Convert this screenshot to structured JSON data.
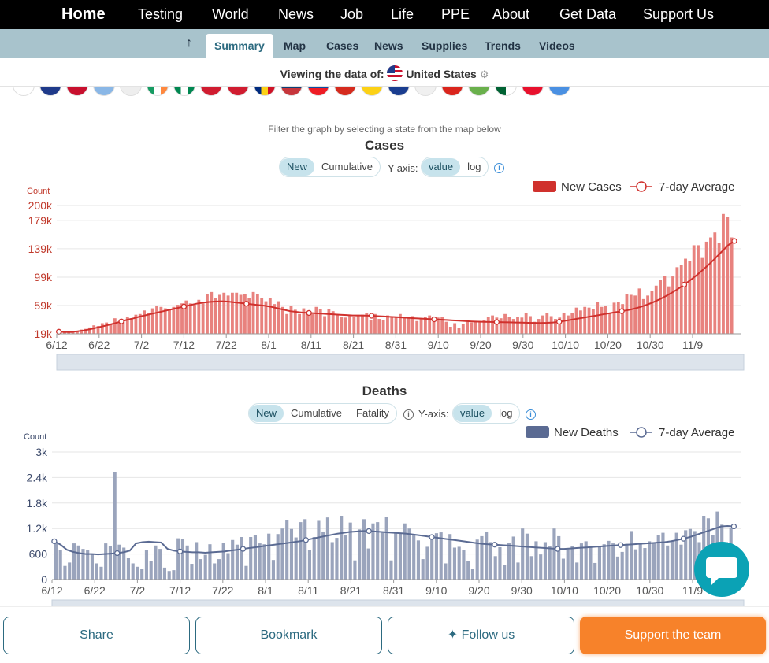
{
  "topnav": {
    "items": [
      "Home",
      "Testing",
      "World",
      "News",
      "Job",
      "Life",
      "PPE",
      "About",
      "Get Data",
      "Support Us"
    ]
  },
  "subnav": {
    "items": [
      "Summary",
      "Map",
      "Cases",
      "News",
      "Supplies",
      "Trends",
      "Videos"
    ],
    "active": "Summary"
  },
  "viewing": {
    "label": "Viewing the data of:",
    "country": "United States"
  },
  "filter_hint": "Filter the graph by selecting a state from the map below",
  "cases": {
    "title": "Cases",
    "modes": [
      "New",
      "Cumulative"
    ],
    "yaxis_label": "Y-axis:",
    "scales": [
      "value",
      "log"
    ],
    "count_label": "Count",
    "legend_bar": "New Cases",
    "legend_line": "7-day Average",
    "bar_color": "#e8827e",
    "line_color": "#d0312d"
  },
  "deaths": {
    "title": "Deaths",
    "modes": [
      "New",
      "Cumulative",
      "Fatality"
    ],
    "yaxis_label": "Y-axis:",
    "scales": [
      "value",
      "log"
    ],
    "count_label": "Count",
    "legend_bar": "New Deaths",
    "legend_line": "7-day Average",
    "bar_color": "#9aa4bc",
    "line_color": "#5b6b93"
  },
  "chart_data": [
    {
      "type": "bar",
      "title": "Cases",
      "ylabel": "Count",
      "yticks": [
        "19k",
        "59k",
        "99k",
        "139k",
        "179k",
        "200k"
      ],
      "ytick_values": [
        19000,
        59000,
        99000,
        139000,
        179000,
        200000
      ],
      "ylim": [
        19000,
        200000
      ],
      "xticks": [
        "6/12",
        "6/22",
        "7/2",
        "7/12",
        "7/22",
        "8/1",
        "8/11",
        "8/21",
        "8/31",
        "9/10",
        "9/20",
        "9/30",
        "10/10",
        "10/20",
        "10/30",
        "11/9"
      ],
      "series": [
        {
          "name": "New Cases",
          "type": "bar",
          "values": [
            23000,
            21000,
            21000,
            22000,
            22000,
            25000,
            26000,
            28000,
            31000,
            30000,
            34000,
            35000,
            33000,
            41000,
            36000,
            39000,
            43000,
            41000,
            46000,
            47000,
            52000,
            49000,
            55000,
            58000,
            57000,
            55000,
            54000,
            57000,
            60000,
            62000,
            66000,
            62000,
            60000,
            67000,
            62000,
            75000,
            78000,
            70000,
            74000,
            77000,
            73000,
            77000,
            77000,
            74000,
            75000,
            70000,
            78000,
            75000,
            70000,
            65000,
            69000,
            61000,
            65000,
            57000,
            47000,
            58000,
            53000,
            47000,
            55000,
            48000,
            47000,
            57000,
            54000,
            44000,
            54000,
            51000,
            46000,
            43000,
            42000,
            46000,
            43000,
            44000,
            46000,
            48000,
            38000,
            47000,
            40000,
            38000,
            45000,
            42000,
            43000,
            47000,
            42000,
            42000,
            44000,
            37000,
            41000,
            43000,
            45000,
            36000,
            42000,
            43000,
            36000,
            29000,
            34000,
            27000,
            33000,
            36000,
            35000,
            36000,
            37000,
            39000,
            43000,
            45000,
            42000,
            41000,
            47000,
            43000,
            40000,
            43000,
            42000,
            49000,
            44000,
            36000,
            40000,
            45000,
            48000,
            44000,
            40000,
            42000,
            49000,
            45000,
            49000,
            56000,
            52000,
            57000,
            56000,
            54000,
            64000,
            57000,
            59000,
            48000,
            63000,
            64000,
            61000,
            75000,
            74000,
            73000,
            83000,
            68000,
            73000,
            80000,
            87000,
            95000,
            101000,
            86000,
            100000,
            113000,
            116000,
            125000,
            122000,
            144000,
            144000,
            126000,
            149000,
            155000,
            162000,
            147000,
            188000,
            184000,
            155000
          ]
        },
        {
          "name": "7-day Average",
          "type": "line",
          "values": [
            22000,
            21500,
            21600,
            22500,
            23800,
            25500,
            27500,
            29500,
            31800,
            34000,
            36500,
            39000,
            41000,
            43500,
            45500,
            47500,
            49500,
            51500,
            53500,
            55500,
            57500,
            59500,
            61500,
            63000,
            64000,
            64500,
            65000,
            64500,
            63500,
            62500,
            61500,
            60500,
            59500,
            58500,
            57000,
            55000,
            53000,
            51000,
            50000,
            49000,
            48500,
            48000,
            47500,
            47000,
            46500,
            46000,
            45500,
            45000,
            45000,
            44800,
            44500,
            44000,
            43500,
            43000,
            42500,
            42000,
            41500,
            41000,
            40500,
            40000,
            39500,
            39000,
            38500,
            38000,
            37500,
            37000,
            36500,
            36200,
            36000,
            35800,
            35600,
            35400,
            35200,
            35000,
            34800,
            34600,
            34400,
            34300,
            34500,
            35000,
            36000,
            37500,
            39000,
            40500,
            42000,
            43500,
            45000,
            46500,
            48000,
            49500,
            51000,
            52500,
            54500,
            57000,
            60000,
            63500,
            67500,
            72000,
            77000,
            82500,
            88500,
            95000,
            102000,
            109500,
            117500,
            126000,
            135000,
            144000,
            150000
          ]
        }
      ]
    },
    {
      "type": "bar",
      "title": "Deaths",
      "ylabel": "Count",
      "yticks": [
        "0",
        "600",
        "1.2k",
        "1.8k",
        "2.4k",
        "3k"
      ],
      "ytick_values": [
        0,
        600,
        1200,
        1800,
        2400,
        3000
      ],
      "ylim": [
        0,
        3000
      ],
      "xticks": [
        "6/12",
        "6/22",
        "7/2",
        "7/12",
        "7/22",
        "8/1",
        "8/11",
        "8/21",
        "8/31",
        "9/10",
        "9/20",
        "9/30",
        "10/10",
        "10/20",
        "10/30",
        "11/9"
      ],
      "series": [
        {
          "name": "New Deaths",
          "type": "bar",
          "values": [
            870,
            700,
            320,
            400,
            850,
            800,
            720,
            700,
            600,
            380,
            300,
            850,
            790,
            2520,
            820,
            750,
            500,
            380,
            300,
            250,
            700,
            440,
            800,
            720,
            280,
            200,
            220,
            970,
            950,
            800,
            370,
            880,
            480,
            580,
            830,
            380,
            480,
            870,
            620,
            930,
            820,
            1000,
            320,
            1000,
            1050,
            850,
            830,
            1080,
            460,
            1070,
            1200,
            1400,
            1190,
            990,
            1350,
            1420,
            700,
            1000,
            1380,
            1130,
            1460,
            880,
            980,
            1500,
            1040,
            1340,
            450,
            1180,
            1420,
            730,
            1320,
            1350,
            1100,
            1480,
            450,
            1090,
            1100,
            1320,
            1200,
            1050,
            920,
            480,
            770,
            1040,
            1090,
            1110,
            380,
            1070,
            750,
            770,
            700,
            440,
            250,
            940,
            1020,
            1130,
            880,
            550,
            760,
            350,
            860,
            1010,
            400,
            1200,
            1080,
            550,
            900,
            590,
            880,
            780,
            1200,
            1020,
            490,
            710,
            790,
            400,
            850,
            900,
            760,
            390,
            770,
            830,
            910,
            850,
            540,
            650,
            840,
            1140,
            710,
            870,
            740,
            900,
            850,
            1040,
            1100,
            800,
            900,
            1100,
            820,
            1160,
            1190,
            1140,
            880,
            1500,
            1440,
            1050,
            1600,
            1290,
            880,
            1220
          ]
        },
        {
          "name": "7-day Average",
          "type": "line",
          "values": [
            900,
            820,
            700,
            650,
            620,
            600,
            600,
            590,
            600,
            610,
            620,
            640,
            680,
            850,
            880,
            890,
            880,
            870,
            720,
            680,
            660,
            650,
            640,
            640,
            630,
            640,
            650,
            660,
            680,
            700,
            720,
            740,
            760,
            780,
            800,
            820,
            840,
            860,
            880,
            900,
            930,
            960,
            990,
            1020,
            1050,
            1080,
            1100,
            1120,
            1130,
            1140,
            1140,
            1130,
            1120,
            1110,
            1100,
            1090,
            1080,
            1060,
            1040,
            1020,
            1000,
            980,
            960,
            940,
            920,
            900,
            880,
            860,
            840,
            830,
            820,
            810,
            800,
            790,
            780,
            770,
            760,
            750,
            740,
            730,
            720,
            720,
            730,
            740,
            750,
            760,
            770,
            780,
            790,
            800,
            810,
            820,
            830,
            840,
            850,
            860,
            870,
            880,
            900,
            930,
            960,
            1000,
            1050,
            1100,
            1150,
            1200,
            1250,
            1260,
            1250
          ]
        }
      ]
    }
  ],
  "buttons": {
    "share": "Share",
    "bookmark": "Bookmark",
    "follow": "Follow us",
    "support": "Support the team"
  }
}
